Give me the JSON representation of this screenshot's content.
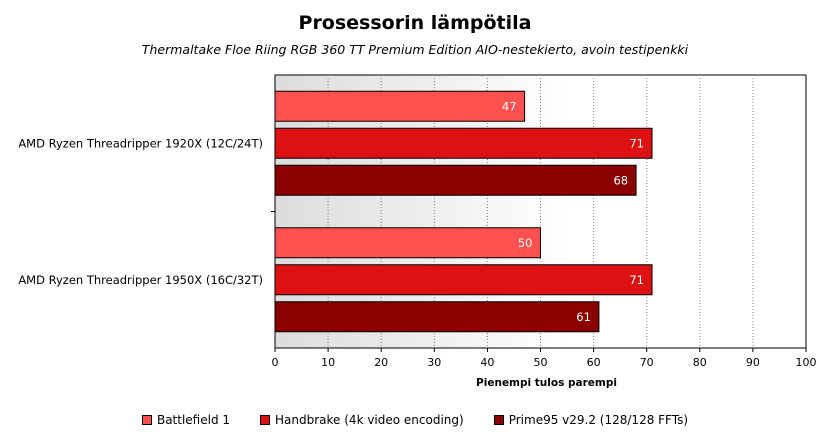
{
  "chart_data": {
    "type": "bar",
    "orientation": "horizontal",
    "title": "Prosessorin lämpötila",
    "subtitle": "Thermaltake Floe Riing RGB 360 TT Premium Edition AIO-nestekierto, avoin testipenkki",
    "xlabel": "Pienempi tulos parempi",
    "xlim": [
      0,
      100
    ],
    "xticks": [
      0,
      10,
      20,
      30,
      40,
      50,
      60,
      70,
      80,
      90,
      100
    ],
    "grid": true,
    "legend_position": "bottom",
    "categories": [
      "AMD Ryzen Threadripper 1920X (12C/24T)",
      "AMD Ryzen Threadripper 1950X (16C/32T)"
    ],
    "series": [
      {
        "name": "Battlefield 1",
        "color": "#ff5050",
        "values": [
          47,
          50
        ]
      },
      {
        "name": "Handbrake (4k video encoding)",
        "color": "#dd1111",
        "values": [
          71,
          71
        ]
      },
      {
        "name": "Prime95 v29.2 (128/128 FFTs)",
        "color": "#8b0000",
        "values": [
          68,
          61
        ]
      }
    ]
  }
}
